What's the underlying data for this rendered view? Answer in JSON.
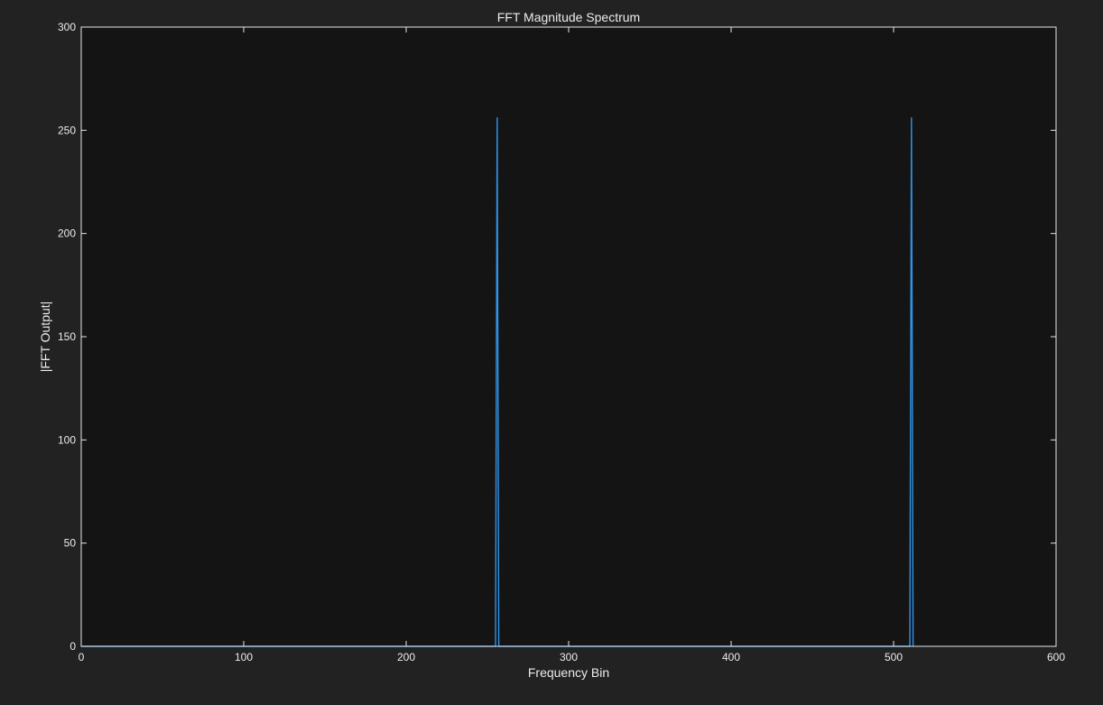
{
  "colors": {
    "figure_background": "#222222",
    "axes_background": "#141414",
    "axis_color": "#e6e6e6",
    "text_color": "#ececec",
    "series_color": "#2f93e6"
  },
  "chart_data": {
    "type": "line",
    "title": "FFT Magnitude Spectrum",
    "xlabel": "Frequency Bin",
    "ylabel": "|FFT Output|",
    "xlim": [
      0,
      600
    ],
    "ylim": [
      0,
      300
    ],
    "xticks": [
      0,
      100,
      200,
      300,
      400,
      500,
      600
    ],
    "yticks": [
      0,
      50,
      100,
      150,
      200,
      250,
      300
    ],
    "xtick_labels": [
      "0",
      "100",
      "200",
      "300",
      "400",
      "500",
      "600"
    ],
    "ytick_labels": [
      "0",
      "50",
      "100",
      "150",
      "200",
      "250",
      "300"
    ],
    "grid": false,
    "series": [
      {
        "x": [
          0,
          255,
          256,
          257,
          510,
          511,
          512
        ],
        "y": [
          0,
          0,
          256,
          0,
          0,
          256,
          0
        ]
      }
    ]
  }
}
